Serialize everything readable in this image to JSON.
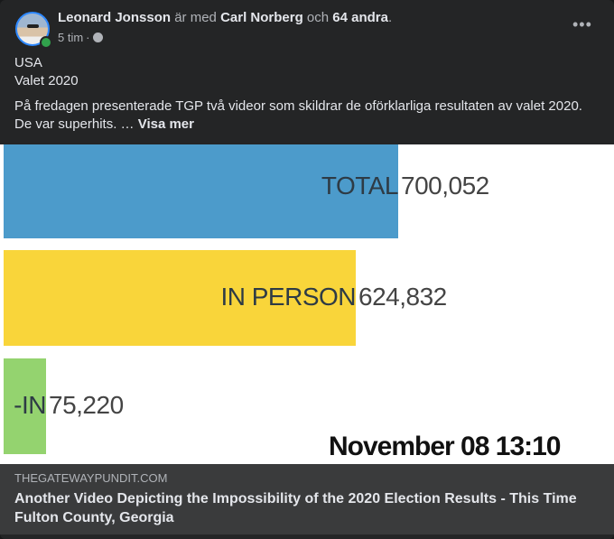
{
  "post": {
    "author": "Leonard Jonsson",
    "with_text": "är med",
    "tagged": "Carl Norberg",
    "and_text": "och",
    "others": "64 andra",
    "period": ".",
    "time": "5 tim",
    "separator": "·",
    "audience_icon": "globe-icon",
    "more_label": "•••",
    "lines": [
      "USA",
      "Valet 2020"
    ],
    "body": "På fredagen presenterade TGP två videor som skildrar de oförklarliga resultaten av valet 2020. De var superhits. …",
    "see_more": "Visa mer"
  },
  "image": {
    "bars": [
      {
        "label": "TOTAL",
        "value": 700052,
        "value_text": "700,052",
        "color": "#4c9bcb"
      },
      {
        "label": "IN PERSON",
        "value": 624832,
        "value_text": "624,832",
        "color": "#f9d53a"
      },
      {
        "label": "-IN",
        "value": 75220,
        "value_text": "75,220",
        "color": "#94d36f"
      }
    ],
    "timestamp": "November 08 13:10"
  },
  "link": {
    "domain": "THEGATEWAYPUNDIT.COM",
    "title": "Another Video Depicting the Impossibility of the 2020 Election Results - This Time Fulton County, Georgia"
  }
}
